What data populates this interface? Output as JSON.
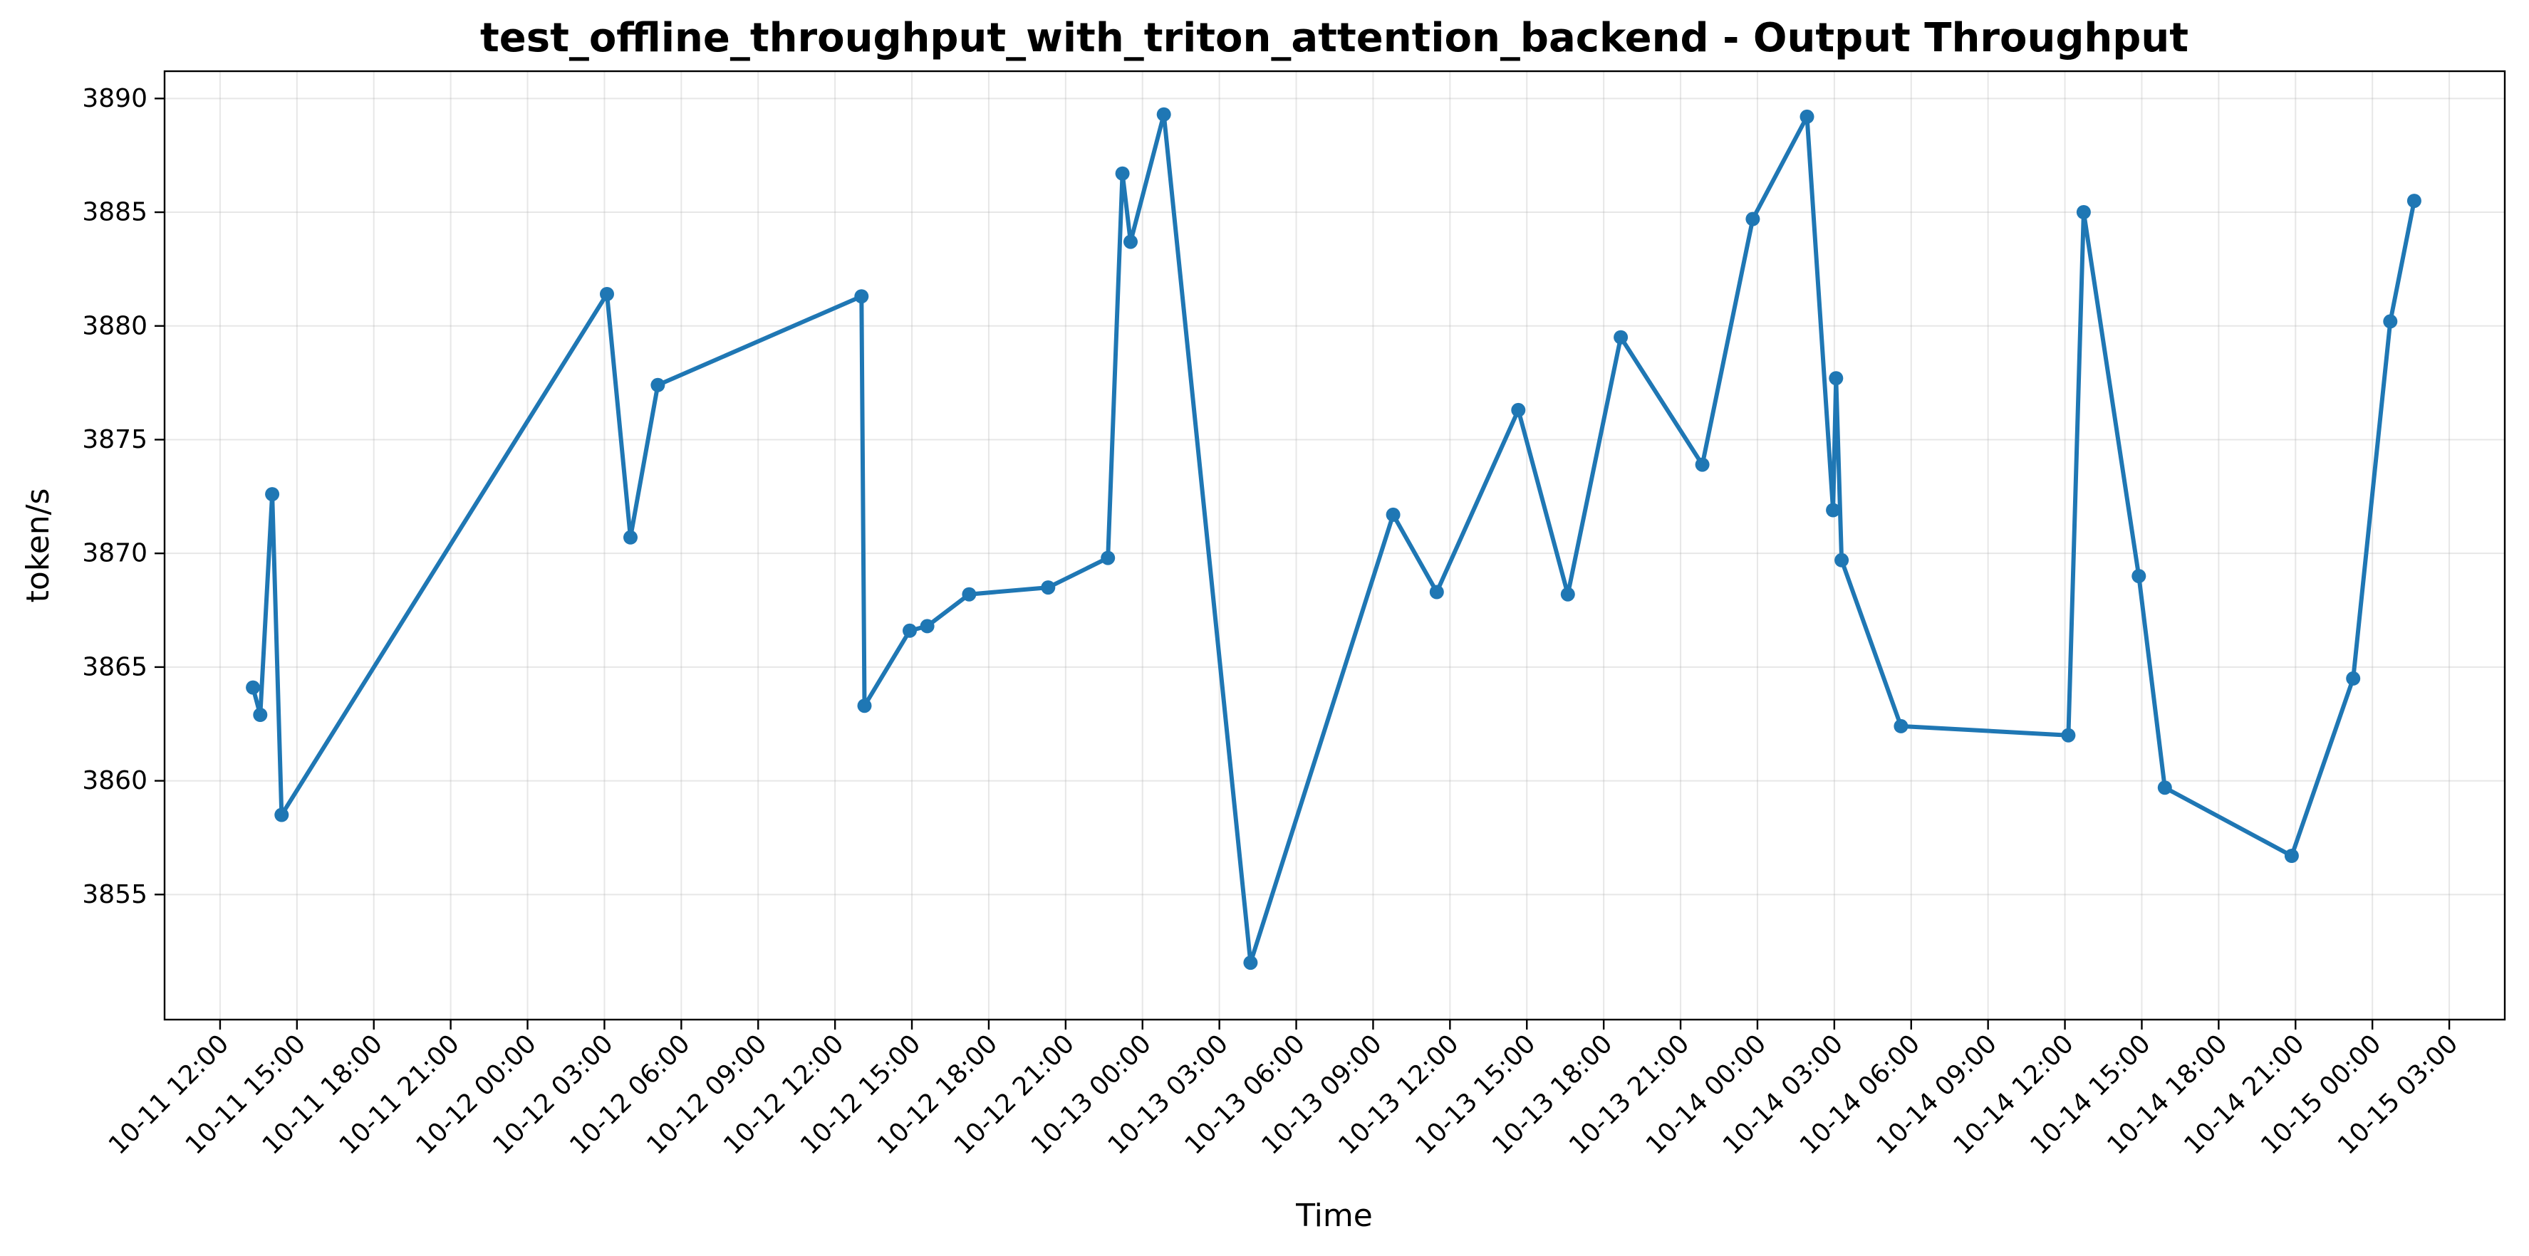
{
  "chart_data": {
    "type": "line",
    "title": "test_offline_throughput_with_triton_attention_backend - Output Throughput",
    "xlabel": "Time",
    "ylabel": "token/s",
    "grid": true,
    "line_color": "#1f77b4",
    "x_range": [
      "2024-10-11T09:50:00",
      "2024-10-15T05:10:00"
    ],
    "ylim": [
      3849.5,
      3891.2
    ],
    "x_ticks": [
      "2024-10-11T12:00",
      "2024-10-11T15:00",
      "2024-10-11T18:00",
      "2024-10-11T21:00",
      "2024-10-12T00:00",
      "2024-10-12T03:00",
      "2024-10-12T06:00",
      "2024-10-12T09:00",
      "2024-10-12T12:00",
      "2024-10-12T15:00",
      "2024-10-12T18:00",
      "2024-10-12T21:00",
      "2024-10-13T00:00",
      "2024-10-13T03:00",
      "2024-10-13T06:00",
      "2024-10-13T09:00",
      "2024-10-13T12:00",
      "2024-10-13T15:00",
      "2024-10-13T18:00",
      "2024-10-13T21:00",
      "2024-10-14T00:00",
      "2024-10-14T03:00",
      "2024-10-14T06:00",
      "2024-10-14T09:00",
      "2024-10-14T12:00",
      "2024-10-14T15:00",
      "2024-10-14T18:00",
      "2024-10-14T21:00",
      "2024-10-15T00:00",
      "2024-10-15T03:00"
    ],
    "x_tick_labels": [
      "10-11 12:00",
      "10-11 15:00",
      "10-11 18:00",
      "10-11 21:00",
      "10-12 00:00",
      "10-12 03:00",
      "10-12 06:00",
      "10-12 09:00",
      "10-12 12:00",
      "10-12 15:00",
      "10-12 18:00",
      "10-12 21:00",
      "10-13 00:00",
      "10-13 03:00",
      "10-13 06:00",
      "10-13 09:00",
      "10-13 12:00",
      "10-13 15:00",
      "10-13 18:00",
      "10-13 21:00",
      "10-14 00:00",
      "10-14 03:00",
      "10-14 06:00",
      "10-14 09:00",
      "10-14 12:00",
      "10-14 15:00",
      "10-14 18:00",
      "10-14 21:00",
      "10-15 00:00",
      "10-15 03:00"
    ],
    "y_ticks": [
      3855,
      3860,
      3865,
      3870,
      3875,
      3880,
      3885,
      3890
    ],
    "y_tick_labels": [
      "3855",
      "3860",
      "3865",
      "3870",
      "3875",
      "3880",
      "3885",
      "3890"
    ],
    "series": [
      {
        "x": [
          "2024-10-11T13:17",
          "2024-10-11T13:34",
          "2024-10-11T14:02",
          "2024-10-11T14:24",
          "2024-10-12T03:06",
          "2024-10-12T04:01",
          "2024-10-12T05:05",
          "2024-10-12T13:02",
          "2024-10-12T13:09",
          "2024-10-12T14:55",
          "2024-10-12T15:36",
          "2024-10-12T17:14",
          "2024-10-12T20:19",
          "2024-10-12T22:39",
          "2024-10-12T23:13",
          "2024-10-12T23:32",
          "2024-10-13T00:50",
          "2024-10-13T04:13",
          "2024-10-13T09:47",
          "2024-10-13T11:29",
          "2024-10-13T14:40",
          "2024-10-13T16:36",
          "2024-10-13T18:40",
          "2024-10-13T21:51",
          "2024-10-13T23:49",
          "2024-10-14T01:56",
          "2024-10-14T02:57",
          "2024-10-14T03:04",
          "2024-10-14T03:17",
          "2024-10-14T05:36",
          "2024-10-14T12:08",
          "2024-10-14T12:44",
          "2024-10-14T14:53",
          "2024-10-14T15:54",
          "2024-10-14T20:51",
          "2024-10-14T23:15",
          "2024-10-15T00:42",
          "2024-10-15T01:38"
        ],
        "y": [
          3864.1,
          3862.9,
          3872.6,
          3858.5,
          3881.4,
          3870.7,
          3877.4,
          3881.3,
          3863.3,
          3866.6,
          3866.8,
          3868.2,
          3868.5,
          3869.8,
          3886.7,
          3883.7,
          3889.3,
          3852.0,
          3871.7,
          3868.3,
          3876.3,
          3868.2,
          3879.5,
          3873.9,
          3884.7,
          3889.2,
          3871.9,
          3877.7,
          3869.7,
          3862.4,
          3862.0,
          3885.0,
          3869.0,
          3859.7,
          3856.7,
          3864.5,
          3880.2,
          3885.5
        ]
      }
    ]
  }
}
